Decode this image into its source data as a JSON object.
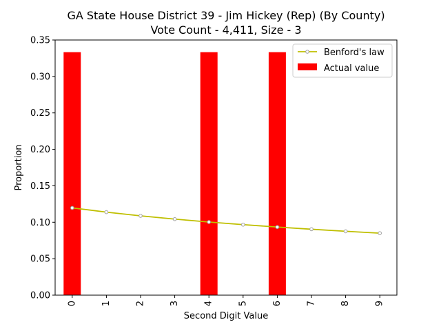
{
  "chart_data": {
    "type": "bar",
    "title": "GA State House District 39 - Jim Hickey (Rep) (By County)",
    "subtitle": "Vote Count - 4,411, Size - 3",
    "xlabel": "Second Digit Value",
    "ylabel": "Proportion",
    "categories": [
      "0",
      "1",
      "2",
      "3",
      "4",
      "5",
      "6",
      "7",
      "8",
      "9"
    ],
    "ylim": [
      0,
      0.35
    ],
    "yticks": [
      "0.00",
      "0.05",
      "0.10",
      "0.15",
      "0.20",
      "0.25",
      "0.30",
      "0.35"
    ],
    "grid": false,
    "legend_position": "top-right",
    "series": [
      {
        "name": "Actual value",
        "kind": "bar",
        "color": "#ff0000",
        "values": [
          0.3333,
          0,
          0,
          0,
          0.3333,
          0,
          0.3333,
          0,
          0,
          0
        ]
      },
      {
        "name": "Benford's law",
        "kind": "line",
        "color": "#bfbf00",
        "marker_color": "#a0a0a0",
        "values": [
          0.1197,
          0.1139,
          0.1088,
          0.1043,
          0.1003,
          0.0967,
          0.0934,
          0.0904,
          0.0876,
          0.085
        ]
      }
    ]
  }
}
